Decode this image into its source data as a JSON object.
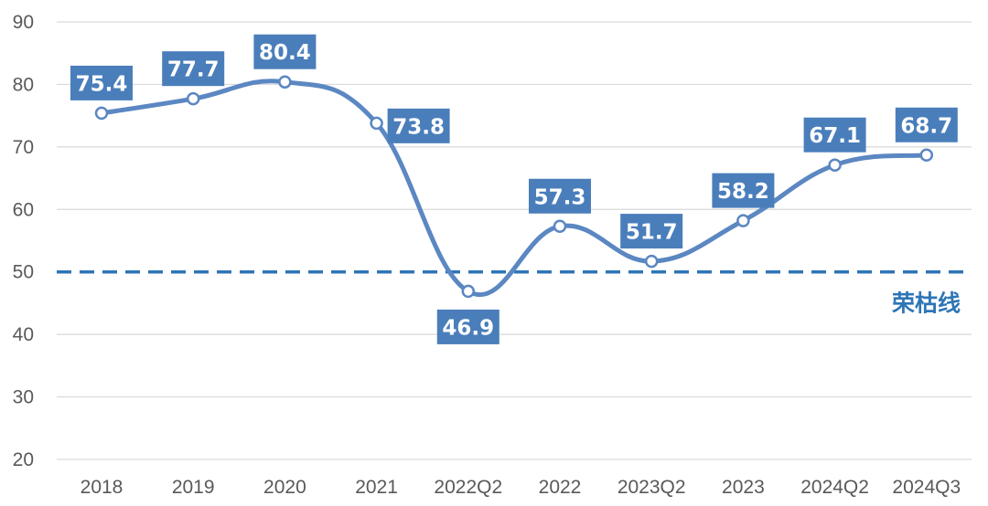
{
  "chart_data": {
    "type": "line",
    "title": "",
    "xlabel": "",
    "ylabel": "",
    "categories": [
      "2018",
      "2019",
      "2020",
      "2021",
      "2022Q2",
      "2022",
      "2023Q2",
      "2023",
      "2024Q2",
      "2024Q3"
    ],
    "series": [
      {
        "values": [
          75.4,
          77.7,
          80.4,
          73.8,
          46.9,
          57.3,
          51.7,
          58.2,
          67.1,
          68.7
        ]
      }
    ],
    "data_labels": [
      "75.4",
      "77.7",
      "80.4",
      "73.8",
      "46.9",
      "57.3",
      "51.7",
      "58.2",
      "67.1",
      "68.7"
    ],
    "ylim": [
      20,
      90
    ],
    "yticks": [
      20,
      30,
      40,
      50,
      60,
      70,
      80,
      90
    ],
    "ytick_labels": [
      "20",
      "30",
      "40",
      "50",
      "60",
      "70",
      "80",
      "90"
    ],
    "grid": true,
    "smooth": true,
    "legend": "none",
    "reference_line": {
      "value": 50,
      "label": "荣枯线",
      "style": "dashed"
    },
    "colors": {
      "line": "#5B87C2",
      "label_bg": "#4A7EBB",
      "label_text": "#FFFFFF",
      "reference": "#2E75B6",
      "grid": "#D9D9D9",
      "axis_text": "#595959"
    }
  }
}
